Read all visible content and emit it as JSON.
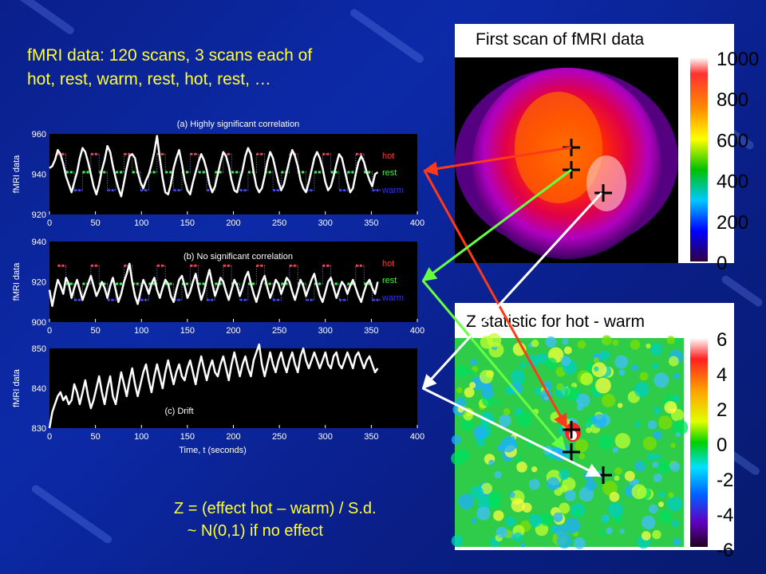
{
  "slide": {
    "headline_line1": "fMRI data: 120 scans, 3 scans each of",
    "headline_line2": "hot, rest, warm, rest, hot, rest, …",
    "formula_line1": "Z = (effect hot – warm) / S.d.",
    "formula_line2": "   ~ N(0,1) if no effect"
  },
  "images": {
    "top_title": "First scan of fMRI data",
    "bottom_title": "Z statistic for hot - warm",
    "top_colorbar_labels": [
      "1000",
      "800",
      "600",
      "400",
      "200",
      "0"
    ],
    "bottom_colorbar_labels": [
      "6",
      "4",
      "2",
      "0",
      "-2",
      "-4",
      "-6"
    ]
  },
  "colors": {
    "hot": "#ff3333",
    "rest": "#33ff33",
    "warm": "#3333ff",
    "signal": "#ffffff",
    "headline": "#ffff33"
  },
  "chart_data": [
    {
      "type": "line",
      "title": "(a) Highly significant correlation",
      "ylabel": "fMRI data",
      "xlabel": "",
      "xlim": [
        0,
        400
      ],
      "ylim": [
        920,
        960
      ],
      "xticks": [
        0,
        50,
        100,
        150,
        200,
        250,
        300,
        350,
        400
      ],
      "yticks": [
        920,
        940,
        960
      ],
      "legend": [
        "hot",
        "rest",
        "warm"
      ],
      "series": [
        {
          "name": "hot",
          "values": [
            950
          ]
        },
        {
          "name": "rest",
          "values": [
            941
          ]
        },
        {
          "name": "warm",
          "values": [
            932
          ]
        }
      ],
      "signal_y": [
        943,
        944,
        947,
        952,
        950,
        945,
        939,
        935,
        931,
        936,
        941,
        948,
        953,
        951,
        946,
        940,
        934,
        930,
        935,
        942,
        947,
        954,
        951,
        944,
        938,
        933,
        929,
        936,
        943,
        949,
        950,
        948,
        941,
        936,
        933,
        937,
        940,
        945,
        951,
        959,
        948,
        938,
        931,
        930,
        935,
        943,
        948,
        952,
        945,
        937,
        932,
        930,
        936,
        941,
        946,
        950,
        947,
        942,
        935,
        931,
        934,
        940,
        946,
        951,
        949,
        944,
        937,
        932,
        931,
        937,
        942,
        949,
        953,
        950,
        941,
        934,
        931,
        933,
        939,
        946,
        951,
        948,
        942,
        936,
        932,
        935,
        941,
        947,
        952,
        949,
        944,
        937,
        933,
        931,
        936,
        942,
        948,
        951,
        948,
        943,
        936,
        932,
        934,
        939,
        945,
        950,
        948,
        942,
        936,
        931,
        933,
        940,
        946,
        949,
        946,
        941,
        937,
        934,
        940,
        941
      ]
    },
    {
      "type": "line",
      "title": "(b) No significant correlation",
      "ylabel": "fMRI data",
      "xlabel": "",
      "xlim": [
        0,
        400
      ],
      "ylim": [
        900,
        940
      ],
      "xticks": [
        0,
        50,
        100,
        150,
        200,
        250,
        300,
        350,
        400
      ],
      "yticks": [
        900,
        920,
        940
      ],
      "legend": [
        "hot",
        "rest",
        "warm"
      ],
      "series": [
        {
          "name": "hot",
          "values": [
            928
          ]
        },
        {
          "name": "rest",
          "values": [
            919
          ]
        },
        {
          "name": "warm",
          "values": [
            911
          ]
        }
      ],
      "signal_y": [
        916,
        908,
        915,
        921,
        918,
        914,
        922,
        919,
        912,
        917,
        921,
        916,
        911,
        915,
        919,
        923,
        918,
        913,
        916,
        920,
        917,
        912,
        918,
        922,
        916,
        910,
        914,
        920,
        924,
        929,
        920,
        913,
        909,
        915,
        921,
        918,
        914,
        919,
        922,
        916,
        912,
        917,
        921,
        919,
        913,
        910,
        916,
        921,
        923,
        918,
        912,
        915,
        920,
        924,
        917,
        911,
        915,
        921,
        926,
        919,
        913,
        917,
        922,
        920,
        915,
        911,
        916,
        921,
        918,
        913,
        917,
        922,
        925,
        919,
        914,
        910,
        915,
        920,
        923,
        917,
        912,
        916,
        921,
        919,
        914,
        918,
        922,
        920,
        915,
        911,
        916,
        921,
        918,
        913,
        917,
        921,
        924,
        918,
        913,
        910,
        915,
        920,
        922,
        917,
        912,
        916,
        920,
        918,
        914,
        918,
        921,
        917,
        913,
        910,
        915,
        919,
        921,
        917,
        914,
        920
      ]
    },
    {
      "type": "line",
      "title": "(c) Drift",
      "ylabel": "fMRI data",
      "xlabel": "Time, t (seconds)",
      "xlim": [
        0,
        400
      ],
      "ylim": [
        830,
        850
      ],
      "xticks": [
        0,
        50,
        100,
        150,
        200,
        250,
        300,
        350,
        400
      ],
      "yticks": [
        830,
        840,
        850
      ],
      "signal_y": [
        830,
        834,
        836,
        838,
        839,
        837,
        838,
        836,
        837,
        841,
        839,
        836,
        839,
        842,
        838,
        835,
        837,
        840,
        843,
        839,
        836,
        840,
        843,
        838,
        836,
        840,
        844,
        841,
        838,
        842,
        845,
        841,
        838,
        841,
        844,
        846,
        842,
        839,
        843,
        846,
        843,
        840,
        844,
        847,
        844,
        841,
        844,
        846,
        843,
        842,
        845,
        847,
        844,
        841,
        845,
        848,
        845,
        842,
        845,
        847,
        844,
        843,
        846,
        848,
        845,
        842,
        846,
        849,
        846,
        843,
        846,
        848,
        845,
        843,
        847,
        849,
        851,
        846,
        843,
        846,
        849,
        846,
        844,
        847,
        849,
        846,
        844,
        847,
        849,
        846,
        844,
        848,
        850,
        847,
        845,
        847,
        849,
        847,
        845,
        847,
        849,
        846,
        845,
        848,
        849,
        846,
        845,
        847,
        849,
        847,
        845,
        848,
        849,
        847,
        845,
        847,
        848,
        846,
        844,
        845
      ]
    }
  ]
}
